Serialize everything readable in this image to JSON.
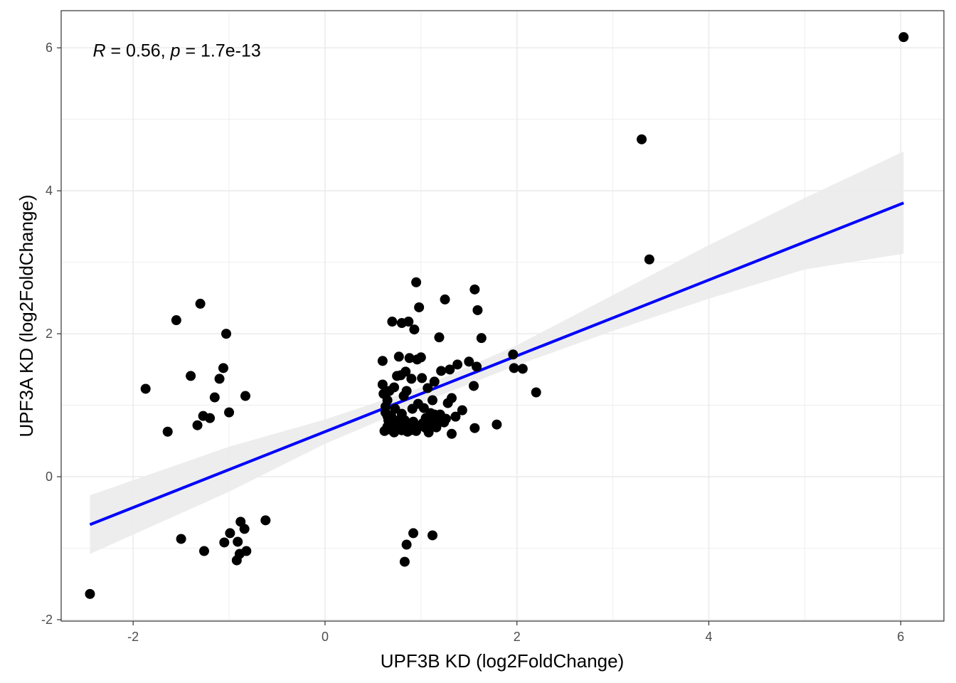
{
  "chart_data": {
    "type": "scatter",
    "title": "",
    "xlabel": "UPF3B KD (log2FoldChange)",
    "ylabel": "UPF3A KD (log2FoldChange)",
    "xlim": [
      -2.75,
      6.45
    ],
    "ylim": [
      -2.02,
      6.52
    ],
    "x_ticks": [
      -2,
      0,
      2,
      4,
      6
    ],
    "y_ticks": [
      -2,
      0,
      2,
      4,
      6
    ],
    "x_tick_labels": [
      "-2",
      "0",
      "2",
      "4",
      "6"
    ],
    "y_tick_labels": [
      "-2",
      "0",
      "2",
      "4",
      "6"
    ],
    "grid": true,
    "colors": {
      "points": "#000000",
      "fit_line": "#0000ff",
      "ribbon": "#ebebeb",
      "grid": "#ebebeb",
      "panel_border": "#333333"
    },
    "annotation": {
      "r_symbol": "R",
      "r_text": " = 0.56, ",
      "p_symbol": "p",
      "p_text": " = 1.7e-13",
      "x": -2.42,
      "y": 5.88
    },
    "fit": {
      "x0": -2.45,
      "y0": -0.67,
      "x1": 6.03,
      "y1": 3.83,
      "band": [
        [
          -2.45,
          -1.08,
          -0.26
        ],
        [
          -1.0,
          -0.21,
          0.42
        ],
        [
          0.0,
          0.46,
          0.8
        ],
        [
          1.0,
          1.03,
          1.25
        ],
        [
          2.0,
          1.56,
          1.84
        ],
        [
          3.0,
          2.04,
          2.54
        ],
        [
          4.0,
          2.49,
          3.24
        ],
        [
          5.0,
          2.9,
          3.9
        ],
        [
          6.03,
          3.12,
          4.55
        ]
      ]
    },
    "points": [
      [
        -2.45,
        -1.64
      ],
      [
        -1.87,
        1.23
      ],
      [
        -1.64,
        0.63
      ],
      [
        -1.55,
        2.19
      ],
      [
        -1.5,
        -0.87
      ],
      [
        -1.4,
        1.41
      ],
      [
        -1.3,
        2.42
      ],
      [
        -1.27,
        0.85
      ],
      [
        -1.2,
        0.82
      ],
      [
        -1.15,
        1.11
      ],
      [
        -1.1,
        1.37
      ],
      [
        -1.06,
        1.52
      ],
      [
        -1.03,
        2.0
      ],
      [
        -1.0,
        0.9
      ],
      [
        -0.83,
        1.13
      ],
      [
        -1.33,
        0.72
      ],
      [
        -1.26,
        -1.04
      ],
      [
        -1.05,
        -0.92
      ],
      [
        -0.99,
        -0.79
      ],
      [
        -0.91,
        -0.91
      ],
      [
        -0.89,
        -1.08
      ],
      [
        -0.88,
        -0.63
      ],
      [
        -0.84,
        -0.73
      ],
      [
        -0.82,
        -1.04
      ],
      [
        -0.92,
        -1.17
      ],
      [
        -0.62,
        -0.61
      ],
      [
        0.6,
        1.62
      ],
      [
        0.6,
        1.29
      ],
      [
        0.61,
        1.16
      ],
      [
        0.63,
        0.98
      ],
      [
        0.65,
        0.85
      ],
      [
        0.65,
        1.07
      ],
      [
        0.67,
        1.2
      ],
      [
        0.7,
        2.17
      ],
      [
        0.72,
        1.25
      ],
      [
        0.73,
        0.95
      ],
      [
        0.75,
        1.41
      ],
      [
        0.77,
        1.68
      ],
      [
        0.79,
        1.42
      ],
      [
        0.8,
        2.15
      ],
      [
        0.82,
        1.13
      ],
      [
        0.84,
        1.47
      ],
      [
        0.85,
        1.2
      ],
      [
        0.87,
        2.17
      ],
      [
        0.88,
        1.66
      ],
      [
        0.9,
        1.37
      ],
      [
        0.91,
        0.95
      ],
      [
        0.93,
        2.06
      ],
      [
        0.95,
        2.72
      ],
      [
        0.96,
        1.64
      ],
      [
        0.97,
        1.02
      ],
      [
        0.98,
        2.37
      ],
      [
        1.0,
        1.67
      ],
      [
        1.01,
        1.38
      ],
      [
        1.03,
        0.96
      ],
      [
        1.05,
        0.82
      ],
      [
        1.07,
        1.24
      ],
      [
        1.1,
        0.89
      ],
      [
        1.12,
        1.07
      ],
      [
        1.14,
        1.33
      ],
      [
        1.17,
        0.78
      ],
      [
        1.19,
        1.95
      ],
      [
        1.21,
        1.48
      ],
      [
        1.25,
        2.48
      ],
      [
        1.26,
        0.81
      ],
      [
        1.28,
        1.03
      ],
      [
        1.3,
        1.5
      ],
      [
        1.32,
        1.1
      ],
      [
        1.36,
        0.84
      ],
      [
        1.38,
        1.57
      ],
      [
        1.43,
        0.93
      ],
      [
        1.5,
        1.61
      ],
      [
        1.55,
        1.27
      ],
      [
        1.56,
        2.62
      ],
      [
        1.58,
        1.54
      ],
      [
        1.59,
        2.33
      ],
      [
        1.63,
        1.94
      ],
      [
        1.56,
        0.68
      ],
      [
        1.79,
        0.73
      ],
      [
        1.32,
        0.6
      ],
      [
        0.62,
        0.64
      ],
      [
        0.65,
        0.7
      ],
      [
        0.68,
        0.66
      ],
      [
        0.7,
        0.72
      ],
      [
        0.72,
        0.62
      ],
      [
        0.74,
        0.76
      ],
      [
        0.76,
        0.68
      ],
      [
        0.78,
        0.8
      ],
      [
        0.8,
        0.65
      ],
      [
        0.82,
        0.74
      ],
      [
        0.84,
        0.68
      ],
      [
        0.86,
        0.63
      ],
      [
        0.88,
        0.71
      ],
      [
        0.9,
        0.66
      ],
      [
        0.92,
        0.77
      ],
      [
        0.95,
        0.64
      ],
      [
        0.98,
        0.7
      ],
      [
        1.02,
        0.75
      ],
      [
        1.05,
        0.68
      ],
      [
        1.08,
        0.62
      ],
      [
        1.12,
        0.72
      ],
      [
        1.16,
        0.69
      ],
      [
        1.2,
        0.87
      ],
      [
        1.24,
        0.76
      ],
      [
        0.63,
        0.9
      ],
      [
        0.66,
        0.79
      ],
      [
        0.69,
        0.85
      ],
      [
        0.71,
        0.69
      ],
      [
        0.73,
        0.65
      ],
      [
        0.77,
        0.71
      ],
      [
        0.8,
        0.88
      ],
      [
        0.83,
        0.79
      ],
      [
        0.85,
        0.66
      ],
      [
        0.87,
        0.73
      ],
      [
        0.89,
        0.65
      ],
      [
        1.0,
        0.72
      ],
      [
        1.1,
        0.8
      ],
      [
        1.14,
        0.87
      ],
      [
        1.96,
        1.71
      ],
      [
        1.97,
        1.52
      ],
      [
        2.06,
        1.51
      ],
      [
        2.2,
        1.18
      ],
      [
        0.92,
        -0.79
      ],
      [
        0.85,
        -0.95
      ],
      [
        1.12,
        -0.82
      ],
      [
        0.83,
        -1.19
      ],
      [
        3.3,
        4.72
      ],
      [
        3.38,
        3.04
      ],
      [
        6.03,
        6.15
      ]
    ]
  }
}
